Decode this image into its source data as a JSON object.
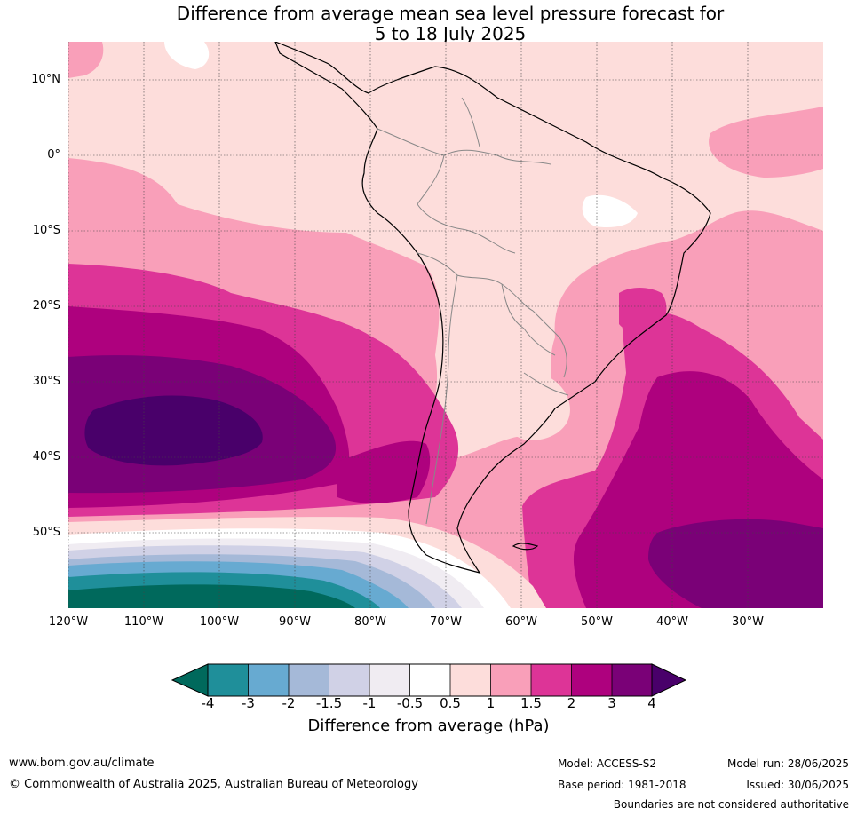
{
  "title_line1": "Difference from average mean sea level pressure forecast for",
  "title_line2": "5 to 18 July 2025",
  "lat_labels": [
    "10°N",
    "0°",
    "10°S",
    "20°S",
    "30°S",
    "40°S",
    "50°S"
  ],
  "lon_labels": [
    "120°W",
    "110°W",
    "100°W",
    "90°W",
    "80°W",
    "70°W",
    "60°W",
    "50°W",
    "40°W",
    "30°W"
  ],
  "colorbar": {
    "label": "Difference from average (hPa)",
    "ticks": [
      "-4",
      "-3",
      "-2",
      "-1.5",
      "-1",
      "-0.5",
      "0.5",
      "1",
      "1.5",
      "2",
      "3",
      "4"
    ],
    "colors": {
      "below_neg4": "#00695c",
      "neg4_neg3": "#1f8f9a",
      "neg3_neg2": "#67aad1",
      "neg2_neg15": "#a5b9d8",
      "neg15_neg1": "#d0d1e6",
      "neg1_neg05": "#f0ecf2",
      "neg05_05": "#ffffff",
      "p05_1": "#fddddb",
      "p1_15": "#f99fb9",
      "p15_2": "#dd3497",
      "p2_3": "#ae017e",
      "p3_4": "#7a0177",
      "above_4": "#49006a"
    }
  },
  "footer": {
    "website": "www.bom.gov.au/climate",
    "copyright": "© Commonwealth of Australia 2025, Australian Bureau of Meteorology",
    "model": "Model: ACCESS-S2",
    "base_period": "Base period: 1981-2018",
    "model_run": "Model run: 28/06/2025",
    "issued": "Issued: 30/06/2025",
    "disclaimer": "Boundaries are not considered authoritative"
  }
}
